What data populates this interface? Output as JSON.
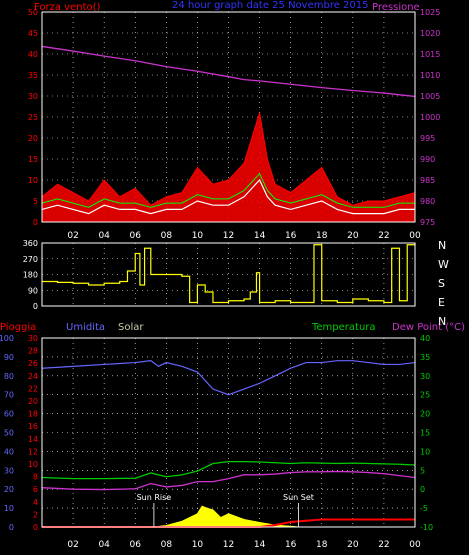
{
  "colors": {
    "bg": "#000000",
    "frame": "#ffffff",
    "grid": "#ffffff",
    "wind": "#ff0000",
    "gust_fill": "#ff0000",
    "wind_avg": "#ffffff",
    "wind_green": "#00ff00",
    "pressure": "#cc33cc",
    "title": "#3333ff",
    "direction": "#ffff00",
    "rain": "#ff0000",
    "humidity": "#6666ff",
    "solar": "#ffff00",
    "temperature": "#00cc00",
    "dewpoint": "#cc33cc",
    "tick_red": "#ff0000",
    "tick_blue": "#6666ff",
    "tick_green": "#00cc00",
    "tick_magenta": "#cc33cc",
    "solar_label": "#ccccaa"
  },
  "header": {
    "wind_label": "Forza vento()",
    "title": "24 hour graph date  25 Novembre 2015",
    "pressure_label": "Pressione"
  },
  "bottom_header": {
    "rain_label": "Pioggia",
    "humidity_label": "Umidita",
    "solar_label": "Solar",
    "temperature_label": "Temperatura",
    "dewpoint_label": "Dew Point (°C)"
  },
  "compass": [
    "N",
    "W",
    "S",
    "E",
    "N"
  ],
  "annotations": {
    "sunrise": "Sun Rise",
    "sunset": "Sun Set"
  },
  "chart_data": [
    {
      "type": "line",
      "name": "wind-pressure",
      "x_ticks": [
        "02",
        "04",
        "06",
        "08",
        "10",
        "12",
        "14",
        "16",
        "18",
        "20",
        "22",
        "00"
      ],
      "left_axis": {
        "ticks": [
          0,
          5,
          10,
          15,
          20,
          25,
          30,
          35,
          40,
          45,
          50
        ],
        "ylim": [
          0,
          50
        ]
      },
      "right_axis": {
        "ticks": [
          975,
          980,
          985,
          990,
          995,
          1000,
          1005,
          1010,
          1015,
          1020,
          1025
        ],
        "ylim": [
          975,
          1025
        ]
      },
      "series": [
        {
          "name": "Pressione",
          "axis": "right",
          "x": [
            0,
            2,
            4,
            6,
            8,
            10,
            12,
            13,
            14,
            16,
            18,
            20,
            22,
            24
          ],
          "values": [
            1016.8,
            1015.7,
            1014.5,
            1013.4,
            1012.0,
            1010.9,
            1009.6,
            1008.9,
            1008.6,
            1007.8,
            1007.0,
            1006.3,
            1005.7,
            1004.9
          ]
        },
        {
          "name": "gust",
          "axis": "left",
          "x": [
            0,
            1,
            2,
            3,
            4,
            5,
            6,
            7,
            8,
            9,
            10,
            11,
            12,
            12.5,
            13,
            13.5,
            14,
            14.5,
            15,
            16,
            17,
            18,
            19,
            20,
            21,
            22,
            23,
            24
          ],
          "values": [
            6,
            9,
            7,
            5,
            10,
            6,
            8,
            4,
            6,
            7,
            13,
            9,
            10,
            12,
            14,
            20,
            26,
            15,
            9,
            7,
            10,
            13,
            6,
            4,
            5,
            5,
            6,
            7
          ]
        },
        {
          "name": "average",
          "axis": "left",
          "x": [
            0,
            1,
            2,
            3,
            4,
            5,
            6,
            7,
            8,
            9,
            10,
            11,
            12,
            12.5,
            13,
            13.5,
            14,
            14.5,
            15,
            16,
            17,
            18,
            19,
            20,
            21,
            22,
            23,
            24
          ],
          "values": [
            3,
            4,
            3,
            2,
            4,
            3,
            3,
            2,
            3,
            3,
            5,
            4,
            4,
            5,
            6,
            8,
            10,
            6,
            4,
            3,
            4,
            5,
            3,
            2,
            2,
            2,
            3,
            3
          ]
        }
      ]
    },
    {
      "type": "line",
      "name": "wind-direction",
      "x_ticks": [
        "02",
        "04",
        "06",
        "08",
        "10",
        "12",
        "14",
        "16",
        "18",
        "20",
        "22",
        "00"
      ],
      "left_axis": {
        "ticks": [
          0,
          90,
          180,
          270,
          360
        ],
        "ylim": [
          0,
          360
        ]
      },
      "series": [
        {
          "name": "direction",
          "x": [
            0,
            1,
            2,
            3,
            4,
            5,
            5.5,
            6,
            6.3,
            6.6,
            7,
            8,
            9,
            9.5,
            10,
            10.5,
            11,
            12,
            13,
            13.4,
            13.8,
            14,
            15,
            16,
            17,
            17.5,
            18,
            19,
            20,
            21,
            22,
            22.5,
            23,
            23.5,
            24
          ],
          "values": [
            140,
            135,
            130,
            120,
            130,
            140,
            200,
            300,
            120,
            330,
            180,
            180,
            170,
            20,
            120,
            80,
            20,
            30,
            40,
            80,
            190,
            20,
            30,
            20,
            20,
            350,
            30,
            20,
            40,
            30,
            20,
            330,
            30,
            350,
            360
          ]
        }
      ]
    },
    {
      "type": "line",
      "name": "humidity-temperature",
      "x_ticks": [
        "02",
        "04",
        "06",
        "08",
        "10",
        "12",
        "14",
        "16",
        "18",
        "20",
        "22",
        "00"
      ],
      "left_axis_humidity": {
        "ticks": [
          0,
          10,
          20,
          30,
          40,
          50,
          60,
          70,
          80,
          90,
          100
        ],
        "ylim": [
          0,
          100
        ]
      },
      "left_axis_rain": {
        "ticks": [
          0,
          2,
          4,
          6,
          8,
          10,
          12,
          14,
          16,
          18,
          20,
          22,
          24,
          26,
          28,
          30
        ],
        "ylim": [
          0,
          30
        ]
      },
      "right_axis": {
        "ticks": [
          -10,
          -5,
          0,
          5,
          10,
          15,
          20,
          25,
          30,
          35,
          40
        ],
        "ylim": [
          -10,
          40
        ]
      },
      "series": [
        {
          "name": "Umidita",
          "axis": "humidity",
          "x": [
            0,
            2,
            4,
            6,
            7,
            7.5,
            8,
            9,
            10,
            11,
            12,
            13,
            14,
            15,
            16,
            17,
            18,
            19,
            20,
            21,
            22,
            23,
            24
          ],
          "values": [
            84,
            85,
            86,
            87,
            88,
            85,
            87,
            85,
            82,
            73,
            70,
            73,
            76,
            80,
            84,
            87,
            87,
            88,
            88,
            87,
            86,
            86,
            87
          ]
        },
        {
          "name": "Temperatura",
          "axis": "right",
          "x": [
            0,
            2,
            4,
            6,
            7,
            8,
            9,
            10,
            11,
            12,
            13,
            14,
            15,
            16,
            17,
            18,
            19,
            20,
            21,
            22,
            23,
            24
          ],
          "values": [
            3.1,
            2.8,
            2.8,
            2.9,
            4.3,
            3.3,
            3.8,
            4.8,
            6.8,
            7.3,
            7.3,
            7.2,
            7.0,
            6.8,
            7.0,
            6.9,
            6.8,
            6.9,
            6.8,
            6.7,
            6.6,
            6.4
          ]
        },
        {
          "name": "Dew Point",
          "axis": "right",
          "x": [
            0,
            2,
            4,
            6,
            7,
            8,
            9,
            10,
            11,
            12,
            13,
            14,
            15,
            16,
            17,
            18,
            19,
            20,
            21,
            22,
            23,
            24
          ],
          "values": [
            0.4,
            0.0,
            -0.1,
            0.1,
            1.5,
            0.6,
            1.0,
            2.0,
            2.0,
            2.8,
            3.8,
            3.8,
            4.0,
            4.4,
            4.6,
            4.6,
            4.7,
            4.6,
            4.4,
            4.1,
            3.6,
            3.1
          ]
        },
        {
          "name": "Solar",
          "axis": "right",
          "x": [
            7.2,
            8,
            9,
            9.5,
            10,
            10.3,
            10.6,
            11,
            11.5,
            12,
            13,
            14,
            15,
            16,
            16.5
          ],
          "values": [
            -10,
            -9.6,
            -8.5,
            -7.5,
            -6.5,
            -4.5,
            -5,
            -5.5,
            -7.5,
            -6.5,
            -8,
            -8.8,
            -9.5,
            -9.8,
            -10
          ]
        },
        {
          "name": "Pioggia",
          "axis": "rain",
          "x": [
            0,
            14,
            15,
            16,
            17,
            18,
            20,
            22,
            24
          ],
          "values": [
            0,
            0,
            0.3,
            0.8,
            1.0,
            1.2,
            1.2,
            1.2,
            1.2
          ]
        }
      ]
    }
  ]
}
